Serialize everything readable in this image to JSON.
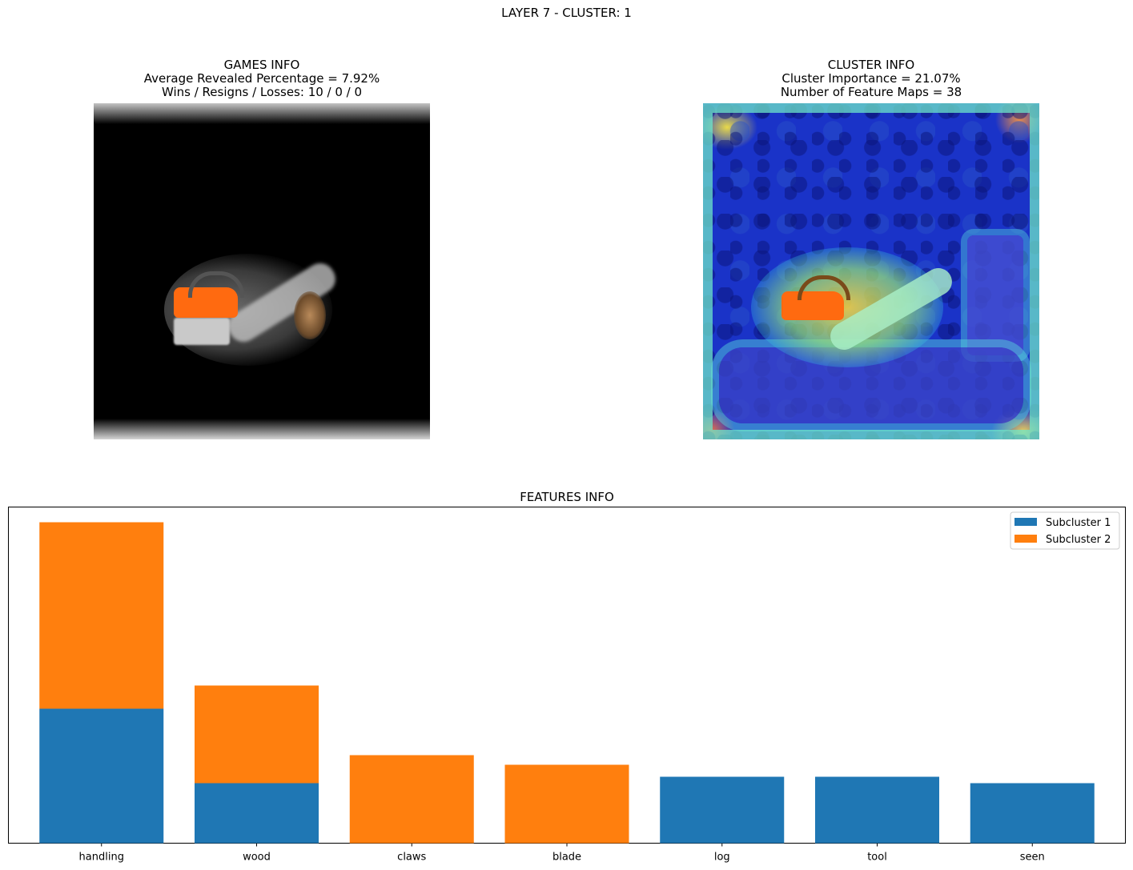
{
  "suptitle": "LAYER 7 - CLUSTER: 1",
  "games_info": {
    "title": "GAMES INFO",
    "line1": "Average Revealed Percentage = 7.92%",
    "line2": "Wins / Resigns / Losses: 10 / 0 / 0"
  },
  "cluster_info": {
    "title": "CLUSTER INFO",
    "line1": "Cluster Importance = 21.07%",
    "line2": "Number of Feature Maps = 38"
  },
  "features_title": "FEATURES INFO",
  "colors": {
    "subcluster_1": "#1f77b4",
    "subcluster_2": "#ff7f0e"
  },
  "chart_data": {
    "type": "bar",
    "stacked": true,
    "title": "FEATURES INFO",
    "categories": [
      "handling",
      "wood",
      "claws",
      "blade",
      "log",
      "tool",
      "seen"
    ],
    "series": [
      {
        "name": "Subcluster 1",
        "values": [
          0.168,
          0.075,
          0.0,
          0.0,
          0.083,
          0.083,
          0.075
        ]
      },
      {
        "name": "Subcluster 2",
        "values": [
          0.233,
          0.122,
          0.11,
          0.098,
          0.0,
          0.0,
          0.0
        ]
      }
    ],
    "ylim": [
      0,
      0.42
    ],
    "yticks_visible": false,
    "legend": "top-right",
    "grid": false
  }
}
